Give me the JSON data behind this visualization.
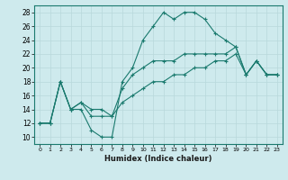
{
  "xlabel": "Humidex (Indice chaleur)",
  "ylabel": "",
  "background_color": "#ceeaed",
  "grid_color": "#b8d8db",
  "line_color": "#1a7a6e",
  "ylim": [
    9,
    29
  ],
  "xlim": [
    -0.5,
    23.5
  ],
  "yticks": [
    10,
    12,
    14,
    16,
    18,
    20,
    22,
    24,
    26,
    28
  ],
  "xticks": [
    0,
    1,
    2,
    3,
    4,
    5,
    6,
    7,
    8,
    9,
    10,
    11,
    12,
    13,
    14,
    15,
    16,
    17,
    18,
    19,
    20,
    21,
    22,
    23
  ],
  "series": [
    {
      "x": [
        0,
        1,
        2,
        3,
        4,
        5,
        6,
        7,
        8,
        9,
        10,
        11,
        12,
        13,
        14,
        15,
        16,
        17,
        18,
        19,
        20,
        21,
        22,
        23
      ],
      "y": [
        12,
        12,
        18,
        14,
        14,
        11,
        10,
        10,
        18,
        20,
        24,
        26,
        28,
        27,
        28,
        28,
        27,
        25,
        24,
        23,
        19,
        21,
        19,
        19
      ]
    },
    {
      "x": [
        0,
        1,
        2,
        3,
        4,
        5,
        6,
        7,
        8,
        9,
        10,
        11,
        12,
        13,
        14,
        15,
        16,
        17,
        18,
        19,
        20,
        21,
        22,
        23
      ],
      "y": [
        12,
        12,
        18,
        14,
        15,
        13,
        13,
        13,
        17,
        19,
        20,
        21,
        21,
        21,
        22,
        22,
        22,
        22,
        22,
        23,
        19,
        21,
        19,
        19
      ]
    },
    {
      "x": [
        0,
        1,
        2,
        3,
        4,
        5,
        6,
        7,
        8,
        9,
        10,
        11,
        12,
        13,
        14,
        15,
        16,
        17,
        18,
        19,
        20,
        21,
        22,
        23
      ],
      "y": [
        12,
        12,
        18,
        14,
        15,
        14,
        14,
        13,
        15,
        16,
        17,
        18,
        18,
        19,
        19,
        20,
        20,
        21,
        21,
        22,
        19,
        21,
        19,
        19
      ]
    }
  ]
}
